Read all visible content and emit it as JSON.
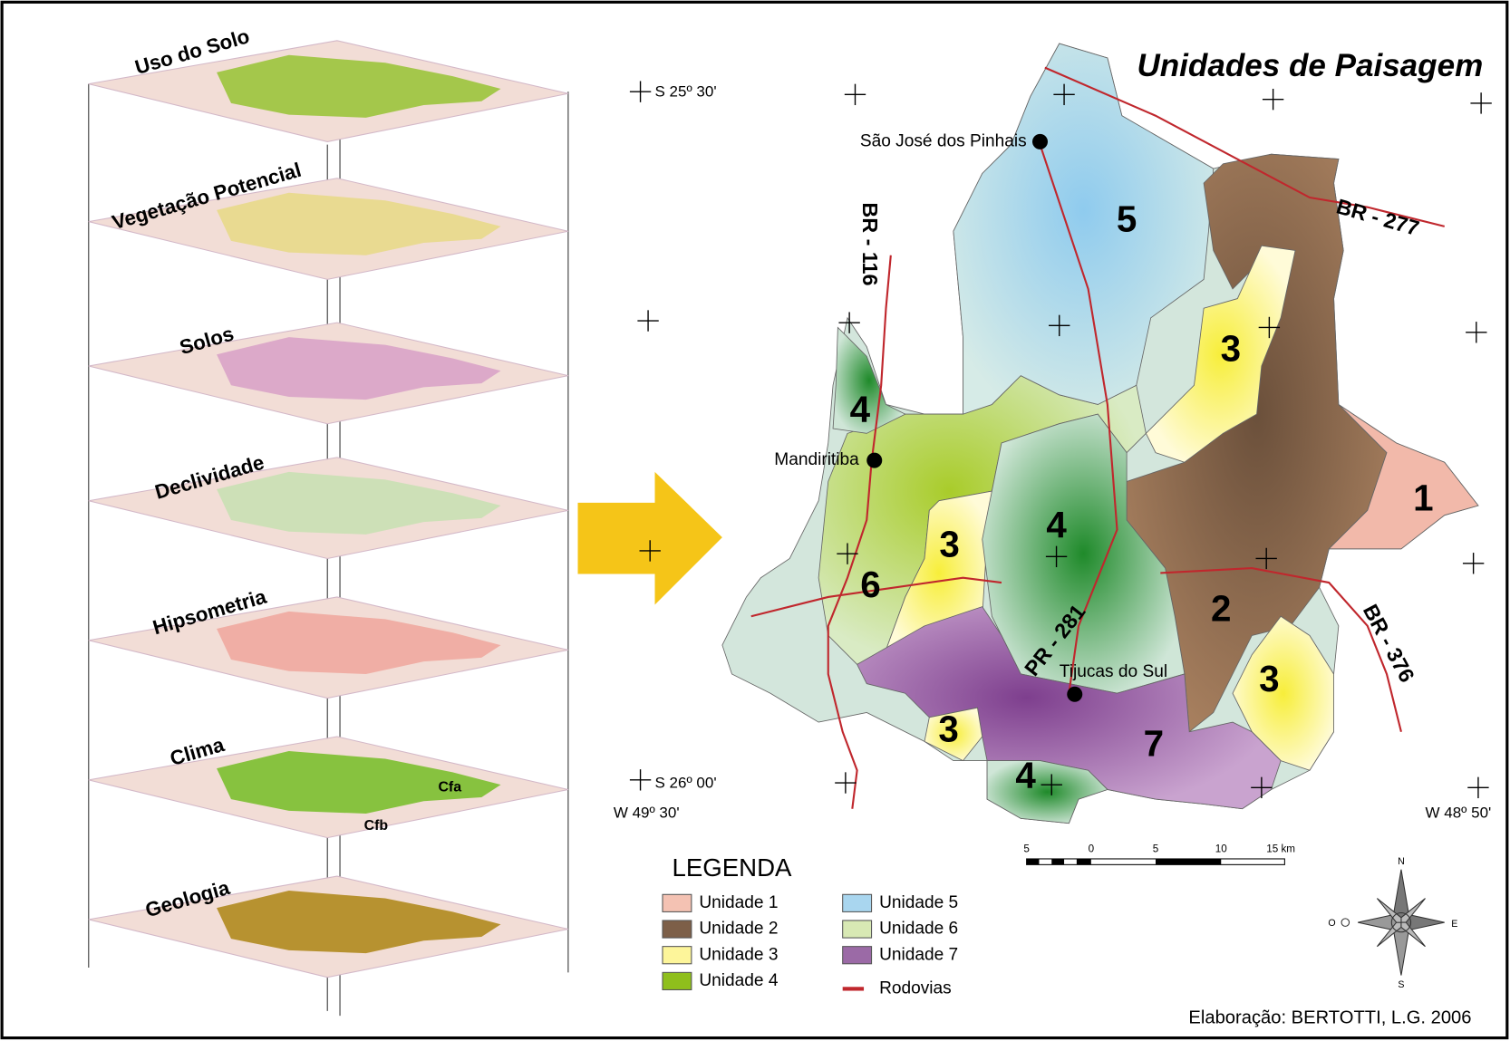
{
  "layers": {
    "items": [
      "Uso do Solo",
      "Vegetação Potencial",
      "Solos",
      "Declividade",
      "Hipsometria",
      "Clima",
      "Geologia"
    ],
    "clima_labels": [
      "Cfa",
      "Cfb"
    ]
  },
  "map": {
    "title": "Unidades de Paisagem",
    "coordinates": [
      "S 25º 30'",
      "S 26º 00'",
      "W 49º 30'",
      "W 48º 50'"
    ],
    "cities": [
      "São José dos Pinhais",
      "Mandiritiba",
      "Tijucas do Sul"
    ],
    "roads": [
      "BR - 277",
      "BR - 116",
      "BR - 376",
      "PR - 281"
    ],
    "unit_labels": [
      "5",
      "3",
      "4",
      "4",
      "1",
      "3",
      "6",
      "2",
      "3",
      "3",
      "7",
      "4"
    ]
  },
  "legend": {
    "title": "LEGENDA",
    "items": [
      {
        "label": "Unidade 1",
        "color": "#f4c2b3"
      },
      {
        "label": "Unidade 2",
        "color": "#7d5f48"
      },
      {
        "label": "Unidade 3",
        "color": "#fdf59a"
      },
      {
        "label": "Unidade 4",
        "color": "#8fbf1c"
      },
      {
        "label": "Unidade 5",
        "color": "#a9d6ef"
      },
      {
        "label": "Unidade 6",
        "color": "#d8e9b4"
      },
      {
        "label": "Unidade 7",
        "color": "#9b6aa6"
      },
      {
        "label": "Rodovias",
        "color": "#c0272d"
      }
    ]
  },
  "scale": {
    "ticks": [
      "5",
      "0",
      "5",
      "10",
      "15 km"
    ]
  },
  "compass": [
    "N",
    "E",
    "S",
    "O"
  ],
  "credit": "Elaboração: BERTOTTI, L.G. 2006"
}
